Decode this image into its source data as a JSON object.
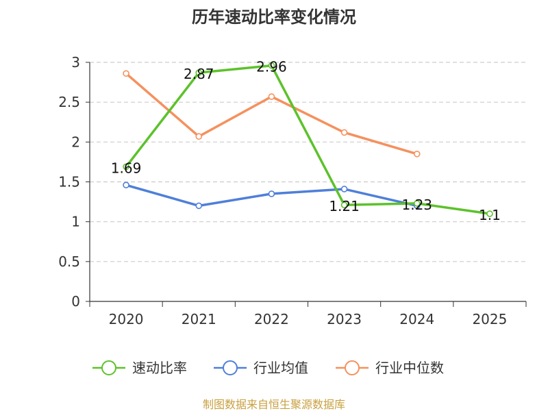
{
  "chart_data": {
    "type": "line",
    "title": "历年速动比率变化情况",
    "categories": [
      "2020",
      "2021",
      "2022",
      "2023",
      "2024",
      "2025"
    ],
    "ylim": [
      0,
      3
    ],
    "yticks": [
      "0",
      "0.5",
      "1",
      "1.5",
      "2",
      "2.5",
      "3"
    ],
    "grid": true,
    "legend_position": "bottom",
    "series": [
      {
        "name": "速动比率",
        "color": "#5cc22b",
        "values": [
          1.69,
          2.87,
          2.96,
          1.21,
          1.23,
          1.1
        ],
        "labels": [
          "1.69",
          "2.87",
          "2.96",
          "1.21",
          "1.23",
          "1.1"
        ]
      },
      {
        "name": "行业均值",
        "color": "#4f7fd9",
        "values": [
          1.46,
          1.2,
          1.35,
          1.41,
          1.2,
          null
        ]
      },
      {
        "name": "行业中位数",
        "color": "#f5915e",
        "values": [
          2.86,
          2.07,
          2.57,
          2.12,
          1.85,
          null
        ]
      }
    ]
  },
  "footer": {
    "source": "制图数据来自恒生聚源数据库"
  }
}
